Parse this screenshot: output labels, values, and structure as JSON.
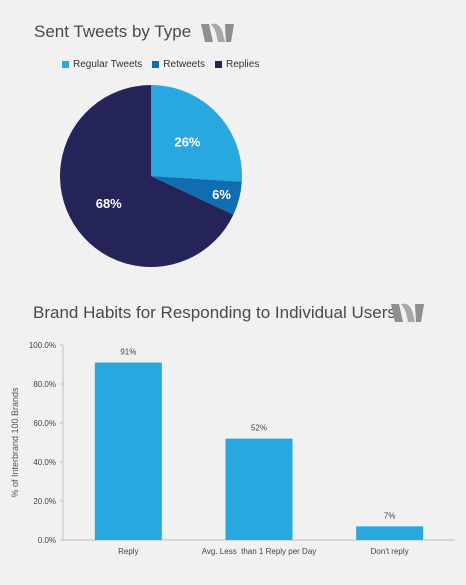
{
  "charts": {
    "pie_title": "Sent Tweets by Type",
    "bar_title": "Brand Habits for Responding to Individual Users"
  },
  "chart_data": [
    {
      "type": "pie",
      "title": "Sent Tweets by Type",
      "legend_position": "top",
      "slices": [
        {
          "label": "Regular Tweets",
          "value": 26,
          "display": "26%",
          "color": "#29a8e0"
        },
        {
          "label": "Retweets",
          "value": 6,
          "display": "6%",
          "color": "#0f6db0"
        },
        {
          "label": "Replies",
          "value": 68,
          "display": "68%",
          "color": "#252459"
        }
      ]
    },
    {
      "type": "bar",
      "title": "Brand Habits for Responding to Individual Users",
      "ylabel": "% of Interbrand 100 Brands",
      "xlabel": "",
      "categories": [
        "Reply",
        "Avg. Less  than 1 Reply per Day",
        "Don't reply"
      ],
      "values": [
        91,
        52,
        7
      ],
      "value_labels": [
        "91%",
        "52%",
        "7%"
      ],
      "ylim": [
        0,
        100
      ],
      "yticks": [
        "0.0%",
        "20.0%",
        "40.0%",
        "60.0%",
        "80.0%",
        "100.0%"
      ],
      "bar_color": "#29a8e0",
      "grid": false
    }
  ]
}
